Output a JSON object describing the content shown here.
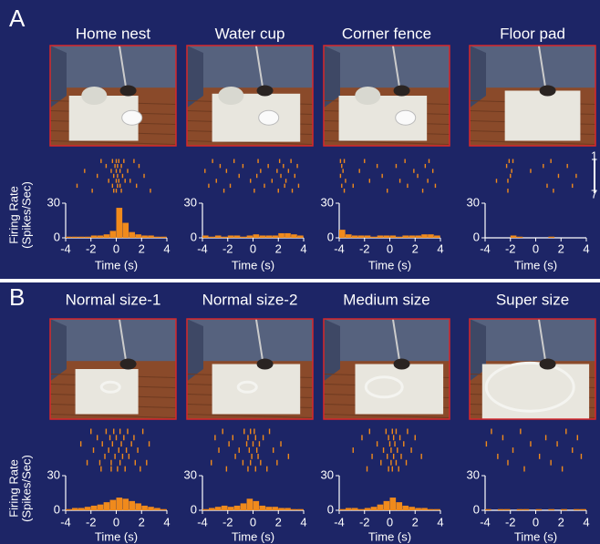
{
  "panels": [
    {
      "label": "A",
      "ylabel": [
        "Firing Rate",
        "(Spikes/Sec)"
      ],
      "trial_labels": [
        "1",
        "7"
      ]
    },
    {
      "label": "B",
      "ylabel": [
        "Firing Rate",
        "(Spikes/Sec)"
      ]
    }
  ],
  "chart_data": [
    {
      "type": "histogram",
      "title": "Home nest",
      "xlabel": "Time (s)",
      "color": "#f08a1c",
      "bins": [
        -4,
        -3.5,
        -3,
        -2.5,
        -2,
        -1.5,
        -1,
        -0.5,
        0,
        0.5,
        1,
        1.5,
        2,
        2.5,
        3,
        3.5,
        4
      ],
      "values": [
        1,
        1,
        1,
        1,
        2,
        2,
        3,
        6,
        26,
        13,
        5,
        3,
        2,
        2,
        1,
        1
      ],
      "raster": [
        [
          -1.2,
          -0.3,
          0,
          0.2,
          0.6,
          1.4
        ],
        [
          -0.8,
          -0.1,
          0.1,
          0.4,
          1.8
        ],
        [
          -2.5,
          -0.4,
          0,
          0.3,
          0.9
        ],
        [
          -1.5,
          -0.2,
          0.1,
          0.5,
          2.2
        ],
        [
          -0.6,
          0,
          0.2,
          0.7,
          1.1
        ],
        [
          -3.1,
          -0.3,
          0.1,
          0.3,
          1.6
        ],
        [
          -1.9,
          -0.2,
          0,
          0.4,
          2.7
        ]
      ],
      "xlim": [
        -4,
        4
      ],
      "ylim": [
        0,
        30
      ],
      "xticks": [
        -4,
        -2,
        0,
        2,
        4
      ],
      "yticks": [
        0,
        30
      ]
    },
    {
      "type": "histogram",
      "title": "Water cup",
      "xlabel": "Time (s)",
      "color": "#f08a1c",
      "bins": [
        -4,
        -3.5,
        -3,
        -2.5,
        -2,
        -1.5,
        -1,
        -0.5,
        0,
        0.5,
        1,
        1.5,
        2,
        2.5,
        3,
        3.5,
        4
      ],
      "values": [
        2,
        1,
        2,
        1,
        2,
        2,
        1,
        2,
        3,
        2,
        2,
        2,
        4,
        4,
        3,
        2
      ],
      "raster": [
        [
          -3.2,
          -1.5,
          0.4,
          2.1,
          3
        ],
        [
          -2.6,
          -0.8,
          1.2,
          2.4,
          3.5
        ],
        [
          -3.8,
          -2.1,
          0.6,
          1.9,
          2.8
        ],
        [
          -1.1,
          0.3,
          2.2,
          3.3
        ],
        [
          -2.9,
          -0.2,
          1.5,
          2.6
        ],
        [
          -3.5,
          -1.8,
          0.9,
          2.5,
          3.6
        ],
        [
          -2.3,
          0.1,
          2.0,
          3.1
        ]
      ],
      "xlim": [
        -4,
        4
      ],
      "ylim": [
        0,
        30
      ],
      "xticks": [
        -4,
        -2,
        0,
        2,
        4
      ],
      "yticks": [
        0,
        30
      ]
    },
    {
      "type": "histogram",
      "title": "Corner fence",
      "xlabel": "Time (s)",
      "color": "#f08a1c",
      "bins": [
        -4,
        -3.5,
        -3,
        -2.5,
        -2,
        -1.5,
        -1,
        -0.5,
        0,
        0.5,
        1,
        1.5,
        2,
        2.5,
        3,
        3.5,
        4
      ],
      "values": [
        7,
        3,
        2,
        2,
        2,
        1,
        2,
        2,
        2,
        1,
        2,
        2,
        2,
        3,
        3,
        2
      ],
      "raster": [
        [
          -3.9,
          -3.6,
          -2,
          1.2,
          3.1
        ],
        [
          -3.8,
          -1,
          0.5,
          2.8
        ],
        [
          -3.7,
          -2.4,
          1.9,
          3.4
        ],
        [
          -3.9,
          -0.6,
          2.2
        ],
        [
          -3.5,
          -1.6,
          0.8,
          3
        ],
        [
          -3.8,
          -2.9,
          1.4,
          3.6
        ],
        [
          -3.6,
          -0.2,
          2.6
        ]
      ],
      "xlim": [
        -4,
        4
      ],
      "ylim": [
        0,
        30
      ],
      "xticks": [
        -4,
        -2,
        0,
        2,
        4
      ],
      "yticks": [
        0,
        30
      ]
    },
    {
      "type": "histogram",
      "title": "Floor pad",
      "xlabel": "Time (s)",
      "color": "#f08a1c",
      "bins": [
        -4,
        -3.5,
        -3,
        -2.5,
        -2,
        -1.5,
        -1,
        -0.5,
        0,
        0.5,
        1,
        1.5,
        2,
        2.5,
        3,
        3.5,
        4
      ],
      "values": [
        0,
        0,
        0,
        0,
        2,
        1,
        0,
        0,
        0,
        0,
        1,
        0,
        0,
        0,
        0,
        0
      ],
      "raster": [
        [
          -2.1,
          -1.8,
          1.2
        ],
        [
          -2.3,
          0.6,
          2.5
        ],
        [
          -1.9,
          -0.4
        ],
        [
          -2,
          1.8,
          3.2
        ],
        [
          -3.1,
          -2.2
        ],
        [
          0.9,
          2.9
        ],
        [
          -2.2,
          1.4
        ]
      ],
      "xlim": [
        -4,
        4
      ],
      "ylim": [
        0,
        30
      ],
      "xticks": [
        -4,
        -2,
        0,
        2,
        4
      ],
      "yticks": [
        0,
        30
      ]
    },
    {
      "type": "histogram",
      "title": "Normal size-1",
      "xlabel": "Time (s)",
      "color": "#f08a1c",
      "bins": [
        -4,
        -3.5,
        -3,
        -2.5,
        -2,
        -1.5,
        -1,
        -0.5,
        0,
        0.5,
        1,
        1.5,
        2,
        2.5,
        3,
        3.5,
        4
      ],
      "values": [
        1,
        2,
        2,
        3,
        4,
        5,
        7,
        9,
        11,
        10,
        8,
        6,
        4,
        3,
        2,
        1
      ],
      "raster": [
        [
          -2,
          -0.8,
          -0.2,
          0.3,
          0.9,
          2.1
        ],
        [
          -1.5,
          -0.5,
          0,
          0.6,
          1.4
        ],
        [
          -2.8,
          -1.1,
          -0.3,
          0.4,
          1.2,
          2.6
        ],
        [
          -1.8,
          -0.6,
          0.2,
          0.8,
          1.7
        ],
        [
          -0.9,
          -0.1,
          0.5,
          1
        ],
        [
          -2.3,
          -1.3,
          -0.4,
          0.3,
          1.5,
          2.4
        ],
        [
          -1.2,
          -0.4,
          0.1,
          0.7,
          1.9
        ]
      ],
      "xlim": [
        -4,
        4
      ],
      "ylim": [
        0,
        30
      ],
      "xticks": [
        -4,
        -2,
        0,
        2,
        4
      ],
      "yticks": [
        0,
        30
      ]
    },
    {
      "type": "histogram",
      "title": "Normal size-2",
      "xlabel": "Time (s)",
      "color": "#f08a1c",
      "bins": [
        -4,
        -3.5,
        -3,
        -2.5,
        -2,
        -1.5,
        -1,
        -0.5,
        0,
        0.5,
        1,
        1.5,
        2,
        2.5,
        3,
        3.5,
        4
      ],
      "values": [
        1,
        2,
        3,
        4,
        3,
        4,
        6,
        10,
        8,
        4,
        3,
        3,
        2,
        2,
        1,
        1
      ],
      "raster": [
        [
          -2.4,
          -0.7,
          -0.2,
          0.1,
          1.3
        ],
        [
          -3,
          -1.6,
          -0.4,
          0.2,
          0.8
        ],
        [
          -1.9,
          -0.5,
          0,
          0.5,
          2.2
        ],
        [
          -2.7,
          -1.1,
          -0.3,
          0.3,
          1.6
        ],
        [
          -1.4,
          -0.1,
          0.4,
          2.8
        ],
        [
          -3.3,
          -0.8,
          -0.2,
          0.6,
          1.9
        ],
        [
          -2.1,
          -0.4,
          0.2,
          1.1
        ]
      ],
      "xlim": [
        -4,
        4
      ],
      "ylim": [
        0,
        30
      ],
      "xticks": [
        -4,
        -2,
        0,
        2,
        4
      ],
      "yticks": [
        0,
        30
      ]
    },
    {
      "type": "histogram",
      "title": "Medium size",
      "xlabel": "Time (s)",
      "color": "#f08a1c",
      "bins": [
        -4,
        -3.5,
        -3,
        -2.5,
        -2,
        -1.5,
        -1,
        -0.5,
        0,
        0.5,
        1,
        1.5,
        2,
        2.5,
        3,
        3.5,
        4
      ],
      "values": [
        1,
        2,
        2,
        1,
        2,
        3,
        5,
        8,
        11,
        7,
        4,
        3,
        2,
        2,
        1,
        1
      ],
      "raster": [
        [
          -1.6,
          -0.3,
          0.2,
          0.5,
          1.4
        ],
        [
          -2.2,
          -0.1,
          0.3,
          0.8,
          2
        ],
        [
          -1,
          0,
          0.4,
          1.1
        ],
        [
          -2.9,
          -0.5,
          0.1,
          0.6,
          1.7
        ],
        [
          -1.4,
          -0.2,
          0.3,
          0.9,
          2.5
        ],
        [
          -0.7,
          0.1,
          0.5,
          1.3
        ],
        [
          -1.8,
          -0.1,
          0.2,
          0.7
        ]
      ],
      "xlim": [
        -4,
        4
      ],
      "ylim": [
        0,
        30
      ],
      "xticks": [
        -4,
        -2,
        0,
        2,
        4
      ],
      "yticks": [
        0,
        30
      ]
    },
    {
      "type": "histogram",
      "title": "Super size",
      "xlabel": "Time (s)",
      "color": "#f08a1c",
      "bins": [
        -4,
        -3.5,
        -3,
        -2.5,
        -2,
        -1.5,
        -1,
        -0.5,
        0,
        0.5,
        1,
        1.5,
        2,
        2.5,
        3,
        3.5,
        4
      ],
      "values": [
        1,
        0,
        1,
        1,
        0,
        1,
        1,
        0,
        1,
        0,
        1,
        0,
        1,
        0,
        1,
        1
      ],
      "raster": [
        [
          -3.5,
          -1.2,
          2.4
        ],
        [
          -2.6,
          0.8,
          3.3
        ],
        [
          -3.9,
          -0.4,
          1.7
        ],
        [
          -1.8,
          2.9
        ],
        [
          -3,
          0.3,
          3.6
        ],
        [
          -2.2,
          1.2
        ],
        [
          -0.9,
          2.1
        ]
      ],
      "xlim": [
        -4,
        4
      ],
      "ylim": [
        0,
        30
      ],
      "xticks": [
        -4,
        -2,
        0,
        2,
        4
      ],
      "yticks": [
        0,
        30
      ]
    }
  ]
}
